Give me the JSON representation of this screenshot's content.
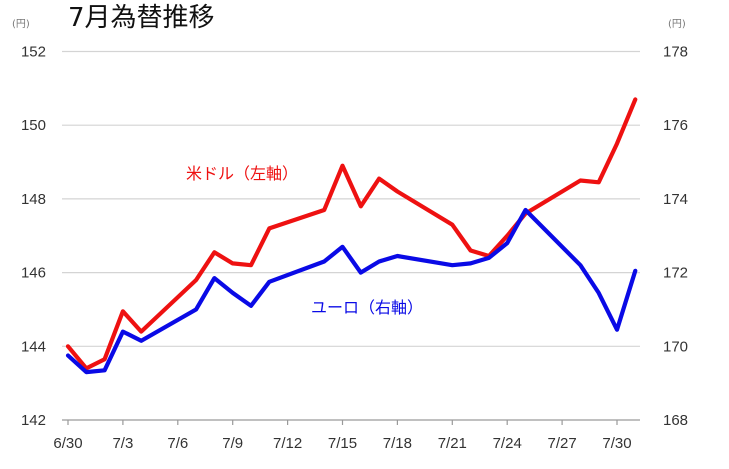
{
  "chart_data": {
    "type": "line",
    "title": "7月為替推移",
    "left_axis": {
      "unit": "(円)",
      "ylim": [
        142,
        152
      ],
      "ticks": [
        142,
        144,
        146,
        148,
        150,
        152
      ]
    },
    "right_axis": {
      "unit": "(円)",
      "ylim": [
        168,
        178
      ],
      "ticks": [
        168,
        170,
        172,
        174,
        176,
        178
      ]
    },
    "x_tick_labels": [
      "6/30",
      "7/3",
      "7/6",
      "7/9",
      "7/12",
      "7/15",
      "7/18",
      "7/21",
      "7/24",
      "7/27",
      "7/30"
    ],
    "grid": true,
    "series": [
      {
        "name": "米ドル（左軸）",
        "axis": "left",
        "color": "#ee1111",
        "points": [
          [
            "6/30",
            144.0
          ],
          [
            "7/1",
            143.4
          ],
          [
            "7/2",
            143.65
          ],
          [
            "7/3",
            144.95
          ],
          [
            "7/4",
            144.4
          ],
          [
            "7/7",
            145.8
          ],
          [
            "7/8",
            146.55
          ],
          [
            "7/9",
            146.25
          ],
          [
            "7/10",
            146.2
          ],
          [
            "7/11",
            147.2
          ],
          [
            "7/14",
            147.7
          ],
          [
            "7/15",
            148.9
          ],
          [
            "7/16",
            147.8
          ],
          [
            "7/17",
            148.55
          ],
          [
            "7/18",
            148.2
          ],
          [
            "7/21",
            147.3
          ],
          [
            "7/22",
            146.6
          ],
          [
            "7/23",
            146.45
          ],
          [
            "7/24",
            147.0
          ],
          [
            "7/25",
            147.6
          ],
          [
            "7/28",
            148.5
          ],
          [
            "7/29",
            148.45
          ],
          [
            "7/30",
            149.5
          ],
          [
            "7/31",
            150.7
          ]
        ]
      },
      {
        "name": "ユーロ（右軸）",
        "axis": "right",
        "color": "#0a0ae6",
        "points": [
          [
            "6/30",
            169.75
          ],
          [
            "7/1",
            169.3
          ],
          [
            "7/2",
            169.35
          ],
          [
            "7/3",
            170.4
          ],
          [
            "7/4",
            170.15
          ],
          [
            "7/7",
            171.0
          ],
          [
            "7/8",
            171.85
          ],
          [
            "7/9",
            171.45
          ],
          [
            "7/10",
            171.1
          ],
          [
            "7/11",
            171.75
          ],
          [
            "7/14",
            172.3
          ],
          [
            "7/15",
            172.7
          ],
          [
            "7/16",
            172.0
          ],
          [
            "7/17",
            172.3
          ],
          [
            "7/18",
            172.45
          ],
          [
            "7/21",
            172.2
          ],
          [
            "7/22",
            172.25
          ],
          [
            "7/23",
            172.4
          ],
          [
            "7/24",
            172.8
          ],
          [
            "7/25",
            173.7
          ],
          [
            "7/28",
            172.2
          ],
          [
            "7/29",
            171.45
          ],
          [
            "7/30",
            170.45
          ],
          [
            "7/31",
            172.05
          ]
        ]
      }
    ]
  }
}
